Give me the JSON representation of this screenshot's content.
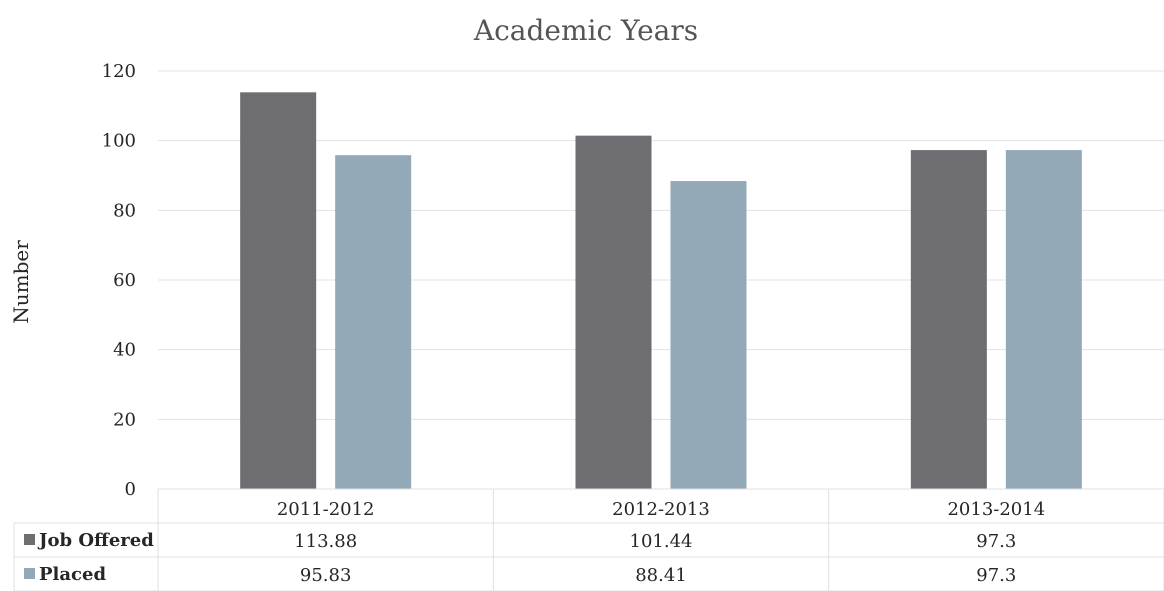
{
  "chart_data": {
    "type": "bar",
    "title": "Academic Years",
    "xlabel": "",
    "ylabel": "Number",
    "ylim": [
      0,
      120
    ],
    "yticks": [
      0,
      20,
      40,
      60,
      80,
      100,
      120
    ],
    "grid": true,
    "legend": "data-table-left",
    "categories": [
      "2011-2012",
      "2012-2013",
      "2013-2014"
    ],
    "series": [
      {
        "name": "Job Offered",
        "color": "#6d6d72",
        "values": [
          113.88,
          101.44,
          97.3
        ],
        "labels": [
          "113.88",
          "101.44",
          "97.3"
        ]
      },
      {
        "name": "Placed",
        "color": "#93a9b8",
        "values": [
          95.83,
          88.41,
          97.3
        ],
        "labels": [
          "95.83",
          "88.41",
          "97.3"
        ]
      }
    ]
  }
}
